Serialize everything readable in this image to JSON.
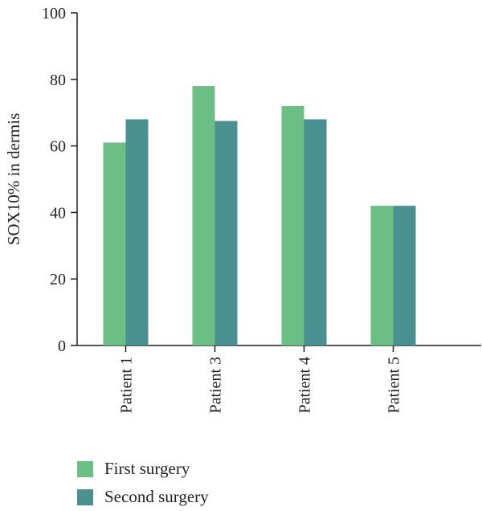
{
  "chart_data": {
    "type": "bar",
    "title": "",
    "xlabel": "",
    "ylabel": "SOX10% in dermis",
    "ylim": [
      0,
      100
    ],
    "yticks": [
      0,
      20,
      40,
      60,
      80,
      100
    ],
    "categories": [
      "Patient 1",
      "Patient 3",
      "Patient 4",
      "Patient 5"
    ],
    "series": [
      {
        "name": "First surgery",
        "color": "#6cbf84",
        "values": [
          61,
          78,
          72,
          42
        ]
      },
      {
        "name": "Second surgery",
        "color": "#4a9090",
        "values": [
          68,
          67.5,
          68,
          42
        ]
      }
    ],
    "grid": false,
    "legend_position": "bottom-left"
  }
}
